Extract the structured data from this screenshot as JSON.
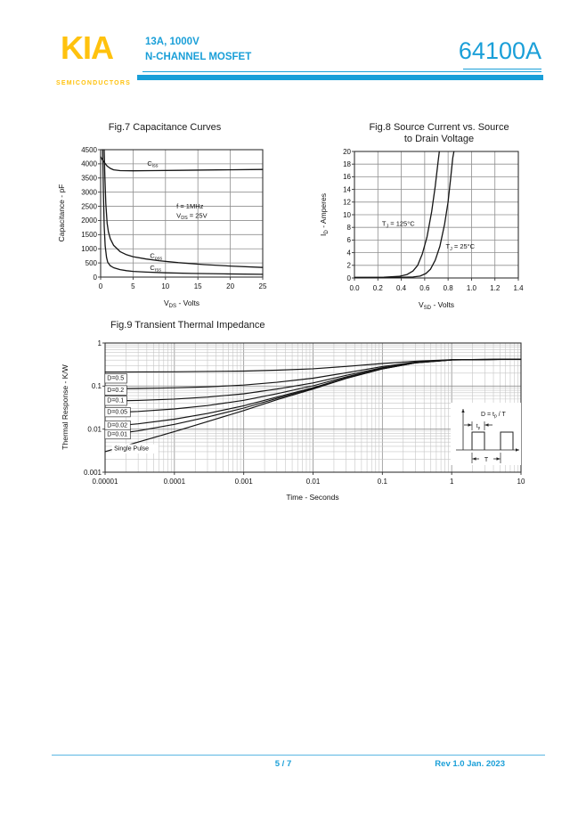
{
  "header": {
    "logo": "KIA",
    "logo_sub": "SEMICONDUCTORS",
    "subtitle_line1": "13A, 1000V",
    "subtitle_line2": "N-CHANNEL MOSFET",
    "part_number": "64100A",
    "accent_color": "#1A9FD8",
    "logo_color": "#FFC20E"
  },
  "footer": {
    "page_indicator": "5 / 7",
    "revision": "Rev 1.0 Jan. 2023"
  },
  "chart_data": [
    {
      "id": "fig7",
      "type": "line",
      "title": "Fig.7  Capacitance Curves",
      "xlabel_parts": [
        {
          "t": "V"
        },
        {
          "t": "DS",
          "sub": true
        },
        {
          "t": " - Volts"
        }
      ],
      "ylabel_parts": [
        {
          "t": "Capacitance - pF"
        }
      ],
      "x": {
        "min": 0,
        "max": 25,
        "scale": "linear",
        "ticks": [
          0,
          5,
          10,
          15,
          20,
          25
        ],
        "tickLabels": [
          "0",
          "5",
          "10",
          "15",
          "20",
          "25"
        ]
      },
      "y": {
        "min": 0,
        "max": 4500,
        "scale": "linear",
        "ticks": [
          0,
          500,
          1000,
          1500,
          2000,
          2500,
          3000,
          3500,
          4000,
          4500
        ],
        "tickLabels": [
          "0",
          "500",
          "1000",
          "1500",
          "2000",
          "2500",
          "3000",
          "3500",
          "4000",
          "4500"
        ]
      },
      "series": [
        {
          "name": "Ciss",
          "points": [
            [
              0,
              4250
            ],
            [
              0.4,
              4100
            ],
            [
              1,
              3920
            ],
            [
              1.5,
              3840
            ],
            [
              2,
              3790
            ],
            [
              3,
              3760
            ],
            [
              5,
              3755
            ],
            [
              8,
              3760
            ],
            [
              12,
              3770
            ],
            [
              18,
              3785
            ],
            [
              25,
              3800
            ]
          ]
        },
        {
          "name": "Coss",
          "points": [
            [
              0.55,
              4500
            ],
            [
              0.65,
              3600
            ],
            [
              0.8,
              2600
            ],
            [
              1,
              1900
            ],
            [
              1.2,
              1600
            ],
            [
              1.5,
              1350
            ],
            [
              2,
              1120
            ],
            [
              3,
              900
            ],
            [
              4,
              790
            ],
            [
              5,
              720
            ],
            [
              7,
              640
            ],
            [
              9,
              580
            ],
            [
              12,
              510
            ],
            [
              16,
              440
            ],
            [
              20,
              390
            ],
            [
              25,
              340
            ]
          ]
        },
        {
          "name": "Crss",
          "points": [
            [
              0.32,
              4500
            ],
            [
              0.42,
              3000
            ],
            [
              0.55,
              1800
            ],
            [
              0.7,
              1100
            ],
            [
              0.9,
              700
            ],
            [
              1.1,
              520
            ],
            [
              1.5,
              400
            ],
            [
              2,
              330
            ],
            [
              3,
              265
            ],
            [
              4,
              225
            ],
            [
              5,
              200
            ],
            [
              7,
              175
            ],
            [
              10,
              150
            ],
            [
              14,
              130
            ],
            [
              19,
              112
            ],
            [
              25,
              98
            ]
          ]
        }
      ],
      "labels": [
        {
          "x": 7.2,
          "y": 4020,
          "parts": [
            {
              "t": "C"
            },
            {
              "t": "iss",
              "sub": true
            }
          ]
        },
        {
          "x": 7.6,
          "y": 760,
          "parts": [
            {
              "t": "C"
            },
            {
              "t": "oss",
              "sub": true
            }
          ]
        },
        {
          "x": 7.6,
          "y": 340,
          "parts": [
            {
              "t": "C"
            },
            {
              "t": "rss",
              "sub": true
            }
          ]
        },
        {
          "x": 11.7,
          "y": 2500,
          "parts": [
            {
              "t": "f = 1MHz"
            }
          ]
        },
        {
          "x": 11.7,
          "y": 2180,
          "parts": [
            {
              "t": "V"
            },
            {
              "t": "DS",
              "sub": true
            },
            {
              "t": " = 25V"
            }
          ]
        }
      ]
    },
    {
      "id": "fig8",
      "type": "line",
      "title_lines": [
        "Fig.8  Source Current vs. Source",
        "to Drain Voltage"
      ],
      "xlabel_parts": [
        {
          "t": "V"
        },
        {
          "t": "SD",
          "sub": true
        },
        {
          "t": " -  Volts"
        }
      ],
      "ylabel_parts": [
        {
          "t": "I"
        },
        {
          "t": "D",
          "sub": true
        },
        {
          "t": " - Amperes"
        }
      ],
      "x": {
        "min": 0,
        "max": 1.4,
        "scale": "linear",
        "ticks": [
          0,
          0.2,
          0.4,
          0.6,
          0.8,
          1.0,
          1.2,
          1.4
        ],
        "tickLabels": [
          "0.0",
          "0.2",
          "0.4",
          "0.6",
          "0.8",
          "1.0",
          "1.2",
          "1.4"
        ]
      },
      "y": {
        "min": 0,
        "max": 20,
        "scale": "linear",
        "ticks": [
          0,
          2,
          4,
          6,
          8,
          10,
          12,
          14,
          16,
          18,
          20
        ],
        "tickLabels": [
          "0",
          "2",
          "4",
          "6",
          "8",
          "10",
          "12",
          "14",
          "16",
          "18",
          "20"
        ]
      },
      "series": [
        {
          "name": "TJ = 125degC",
          "points": [
            [
              0,
              0.1
            ],
            [
              0.25,
              0.12
            ],
            [
              0.38,
              0.25
            ],
            [
              0.45,
              0.55
            ],
            [
              0.5,
              1.1
            ],
            [
              0.54,
              2
            ],
            [
              0.58,
              3.8
            ],
            [
              0.62,
              6.5
            ],
            [
              0.66,
              10.5
            ],
            [
              0.69,
              14.5
            ],
            [
              0.715,
              18.5
            ],
            [
              0.725,
              20
            ]
          ]
        },
        {
          "name": "TJ = 25degC",
          "points": [
            [
              0,
              0.05
            ],
            [
              0.35,
              0.08
            ],
            [
              0.5,
              0.15
            ],
            [
              0.56,
              0.3
            ],
            [
              0.61,
              0.7
            ],
            [
              0.65,
              1.4
            ],
            [
              0.69,
              2.8
            ],
            [
              0.73,
              5
            ],
            [
              0.77,
              8.5
            ],
            [
              0.8,
              12
            ],
            [
              0.82,
              15.5
            ],
            [
              0.84,
              19
            ],
            [
              0.85,
              20
            ]
          ]
        }
      ],
      "labels": [
        {
          "x": 0.235,
          "y": 8.6,
          "parts": [
            {
              "t": "T"
            },
            {
              "t": "J",
              "sub": true
            },
            {
              "t": " = 125°C"
            }
          ]
        },
        {
          "x": 0.78,
          "y": 5.0,
          "parts": [
            {
              "t": "T"
            },
            {
              "t": "J",
              "sub": true
            },
            {
              "t": " = 25°C"
            }
          ]
        }
      ]
    },
    {
      "id": "fig9",
      "type": "line",
      "title": "Fig.9  Transient Thermal Impedance",
      "xlabel_parts": [
        {
          "t": "Time - Seconds"
        }
      ],
      "ylabel_parts": [
        {
          "t": "Thermal Response - K/W"
        }
      ],
      "x": {
        "min": 1e-05,
        "max": 10,
        "scale": "log",
        "ticks": [
          1e-05,
          0.0001,
          0.001,
          0.01,
          0.1,
          1,
          10
        ],
        "tickLabels": [
          "0.00001",
          "0.0001",
          "0.001",
          "0.01",
          "0.1",
          "1",
          "10"
        ]
      },
      "y": {
        "min": 0.001,
        "max": 1,
        "scale": "log",
        "ticks": [
          0.001,
          0.01,
          0.1,
          1
        ],
        "tickLabels": [
          "0.001",
          "0.01",
          "0.1",
          "1"
        ]
      },
      "series": [
        {
          "name": "D=0.5",
          "points": [
            [
              1e-05,
              0.2115
            ],
            [
              0.0001,
              0.2144
            ],
            [
              0.001,
              0.2235
            ],
            [
              0.003,
              0.234
            ],
            [
              0.01,
              0.2525
            ],
            [
              0.03,
              0.285
            ],
            [
              0.1,
              0.335
            ],
            [
              0.3,
              0.3785
            ],
            [
              1,
              0.4105
            ],
            [
              10,
              0.42
            ]
          ]
        },
        {
          "name": "D=0.2",
          "points": [
            [
              1e-05,
              0.0864
            ],
            [
              3e-05,
              0.088
            ],
            [
              0.0001,
              0.091
            ],
            [
              0.0003,
              0.096
            ],
            [
              0.001,
              0.1056
            ],
            [
              0.003,
              0.1224
            ],
            [
              0.01,
              0.152
            ],
            [
              0.03,
              0.204
            ],
            [
              0.1,
              0.284
            ],
            [
              0.3,
              0.36
            ],
            [
              1,
              0.4076
            ],
            [
              10,
              0.42
            ]
          ]
        },
        {
          "name": "D=0.1",
          "points": [
            [
              1e-05,
              0.0447
            ],
            [
              3e-05,
              0.0465
            ],
            [
              0.0001,
              0.0499
            ],
            [
              0.0003,
              0.0555
            ],
            [
              0.001,
              0.0663
            ],
            [
              0.003,
              0.0852
            ],
            [
              0.01,
              0.1185
            ],
            [
              0.03,
              0.177
            ],
            [
              0.1,
              0.267
            ],
            [
              0.3,
              0.3525
            ],
            [
              1,
              0.4064
            ],
            [
              10,
              0.42
            ]
          ]
        },
        {
          "name": "D=0.05",
          "points": [
            [
              1e-05,
              0.0239
            ],
            [
              3e-05,
              0.0258
            ],
            [
              0.0001,
              0.0294
            ],
            [
              0.0003,
              0.0353
            ],
            [
              0.001,
              0.0467
            ],
            [
              0.003,
              0.0666
            ],
            [
              0.01,
              0.1018
            ],
            [
              0.03,
              0.1635
            ],
            [
              0.1,
              0.2585
            ],
            [
              0.3,
              0.3488
            ],
            [
              1,
              0.4057
            ],
            [
              10,
              0.42
            ]
          ]
        },
        {
          "name": "D=0.02",
          "points": [
            [
              1e-05,
              0.0113
            ],
            [
              3e-05,
              0.0133
            ],
            [
              0.0001,
              0.017
            ],
            [
              0.0003,
              0.0231
            ],
            [
              0.001,
              0.0349
            ],
            [
              0.003,
              0.0554
            ],
            [
              0.01,
              0.0917
            ],
            [
              0.03,
              0.1554
            ],
            [
              0.1,
              0.2534
            ],
            [
              0.3,
              0.3465
            ],
            [
              1,
              0.4053
            ],
            [
              10,
              0.42
            ]
          ]
        },
        {
          "name": "D=0.01",
          "points": [
            [
              1e-05,
              0.0072
            ],
            [
              3e-05,
              0.0091
            ],
            [
              0.0001,
              0.0129
            ],
            [
              0.0003,
              0.0191
            ],
            [
              0.001,
              0.0309
            ],
            [
              0.003,
              0.0517
            ],
            [
              0.01,
              0.0884
            ],
            [
              0.03,
              0.1527
            ],
            [
              0.1,
              0.2517
            ],
            [
              0.3,
              0.3457
            ],
            [
              1,
              0.4052
            ],
            [
              10,
              0.42
            ]
          ]
        },
        {
          "name": "Single Pulse",
          "points": [
            [
              1e-05,
              0.003
            ],
            [
              3e-05,
              0.005
            ],
            [
              0.0001,
              0.0088
            ],
            [
              0.0003,
              0.015
            ],
            [
              0.001,
              0.027
            ],
            [
              0.003,
              0.048
            ],
            [
              0.01,
              0.085
            ],
            [
              0.03,
              0.15
            ],
            [
              0.1,
              0.25
            ],
            [
              0.3,
              0.345
            ],
            [
              1,
              0.405
            ],
            [
              3,
              0.418
            ],
            [
              10,
              0.42
            ]
          ]
        }
      ],
      "labels": [
        {
          "x": 1.07e-05,
          "y": 0.155,
          "parts": [
            {
              "t": "D=0.5"
            }
          ],
          "box": true
        },
        {
          "x": 1.07e-05,
          "y": 0.082,
          "parts": [
            {
              "t": "D=0.2"
            }
          ],
          "box": true
        },
        {
          "x": 1.07e-05,
          "y": 0.047,
          "parts": [
            {
              "t": "D=0.1"
            }
          ],
          "box": true
        },
        {
          "x": 1.07e-05,
          "y": 0.0255,
          "parts": [
            {
              "t": "D=0.05"
            }
          ],
          "box": true
        },
        {
          "x": 1.07e-05,
          "y": 0.0125,
          "parts": [
            {
              "t": "D=0.02"
            }
          ],
          "box": true
        },
        {
          "x": 1.07e-05,
          "y": 0.0078,
          "parts": [
            {
              "t": "D=0.01"
            }
          ],
          "box": true
        },
        {
          "x": 1.35e-05,
          "y": 0.0036,
          "parts": [
            {
              "t": "Single Pulse"
            }
          ],
          "bg": true
        }
      ],
      "inset": {
        "formula_parts": [
          {
            "t": "D = t"
          },
          {
            "t": "p",
            "sub": true
          },
          {
            "t": " / T"
          }
        ],
        "tp_parts": [
          {
            "t": "t"
          },
          {
            "t": "p",
            "sub": true
          }
        ],
        "period_label": "T"
      }
    }
  ]
}
